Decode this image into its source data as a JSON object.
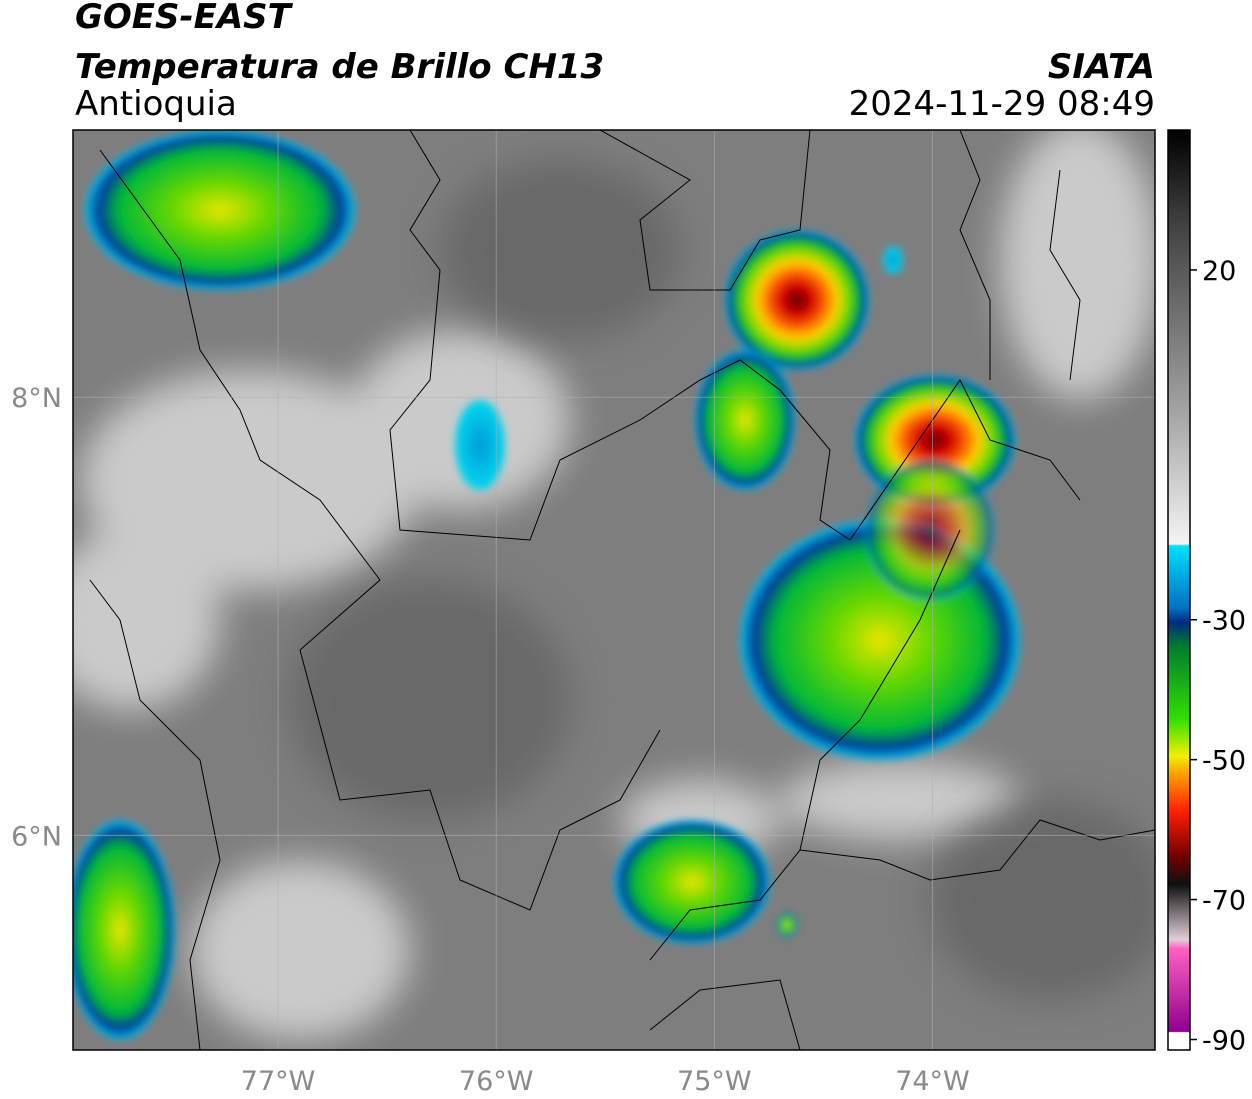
{
  "header": {
    "title": "GOES-EAST",
    "subtitle": "Temperatura de Brillo CH13",
    "region": "Antioquia",
    "source": "SIATA",
    "datetime": "2024-11-29 08:49"
  },
  "map": {
    "xlim": [
      -77.94,
      -72.98
    ],
    "ylim": [
      5.02,
      9.22
    ],
    "xticks": [
      {
        "value": -77,
        "label": "77°W"
      },
      {
        "value": -76,
        "label": "76°W"
      },
      {
        "value": -75,
        "label": "75°W"
      },
      {
        "value": -74,
        "label": "74°W"
      }
    ],
    "yticks": [
      {
        "value": 8,
        "label": "8°N"
      },
      {
        "value": 6,
        "label": "6°N"
      }
    ]
  },
  "colorbar": {
    "range": [
      -91.5,
      40
    ],
    "ticks": [
      20,
      -30,
      -50,
      -70,
      -90
    ]
  }
}
